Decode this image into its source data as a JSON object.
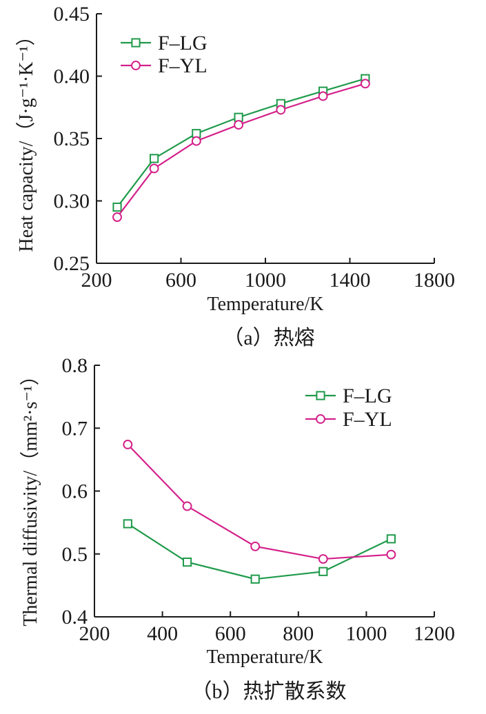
{
  "chart_data": [
    {
      "type": "line",
      "caption": "（a）热熔",
      "xlabel": "Temperature/K",
      "ylabel": "Heat capacity/（J·g⁻¹·K⁻¹）",
      "xlim": [
        200,
        1800
      ],
      "ylim": [
        0.25,
        0.45
      ],
      "xticks": [
        "200",
        "600",
        "1000",
        "1400",
        "1800"
      ],
      "yticks": [
        "0.25",
        "0.30",
        "0.35",
        "0.40",
        "0.45"
      ],
      "grid": false,
      "legend_position": "top-left",
      "series": [
        {
          "name": "F–LG",
          "color": "#1f9a4a",
          "marker": "square",
          "x": [
            298,
            473,
            673,
            873,
            1073,
            1273,
            1473
          ],
          "y": [
            0.295,
            0.334,
            0.354,
            0.367,
            0.378,
            0.388,
            0.398
          ]
        },
        {
          "name": "F–YL",
          "color": "#d4208a",
          "marker": "circle",
          "x": [
            298,
            473,
            673,
            873,
            1073,
            1273,
            1473
          ],
          "y": [
            0.287,
            0.326,
            0.348,
            0.361,
            0.373,
            0.384,
            0.394
          ]
        }
      ]
    },
    {
      "type": "line",
      "caption": "（b）热扩散系数",
      "xlabel": "Temperature/K",
      "ylabel": "Thermal diffusivity/（mm²·s⁻¹）",
      "xlim": [
        200,
        1200
      ],
      "ylim": [
        0.4,
        0.8
      ],
      "xticks": [
        "200",
        "400",
        "600",
        "800",
        "1000",
        "1200"
      ],
      "yticks": [
        "0.4",
        "0.5",
        "0.6",
        "0.7",
        "0.8"
      ],
      "grid": false,
      "legend_position": "top-right",
      "series": [
        {
          "name": "F–LG",
          "color": "#1f9a4a",
          "marker": "square",
          "x": [
            298,
            473,
            673,
            873,
            1073
          ],
          "y": [
            0.548,
            0.487,
            0.46,
            0.472,
            0.524
          ]
        },
        {
          "name": "F–YL",
          "color": "#d4208a",
          "marker": "circle",
          "x": [
            298,
            473,
            673,
            873,
            1073
          ],
          "y": [
            0.674,
            0.576,
            0.512,
            0.492,
            0.499
          ]
        }
      ]
    }
  ]
}
